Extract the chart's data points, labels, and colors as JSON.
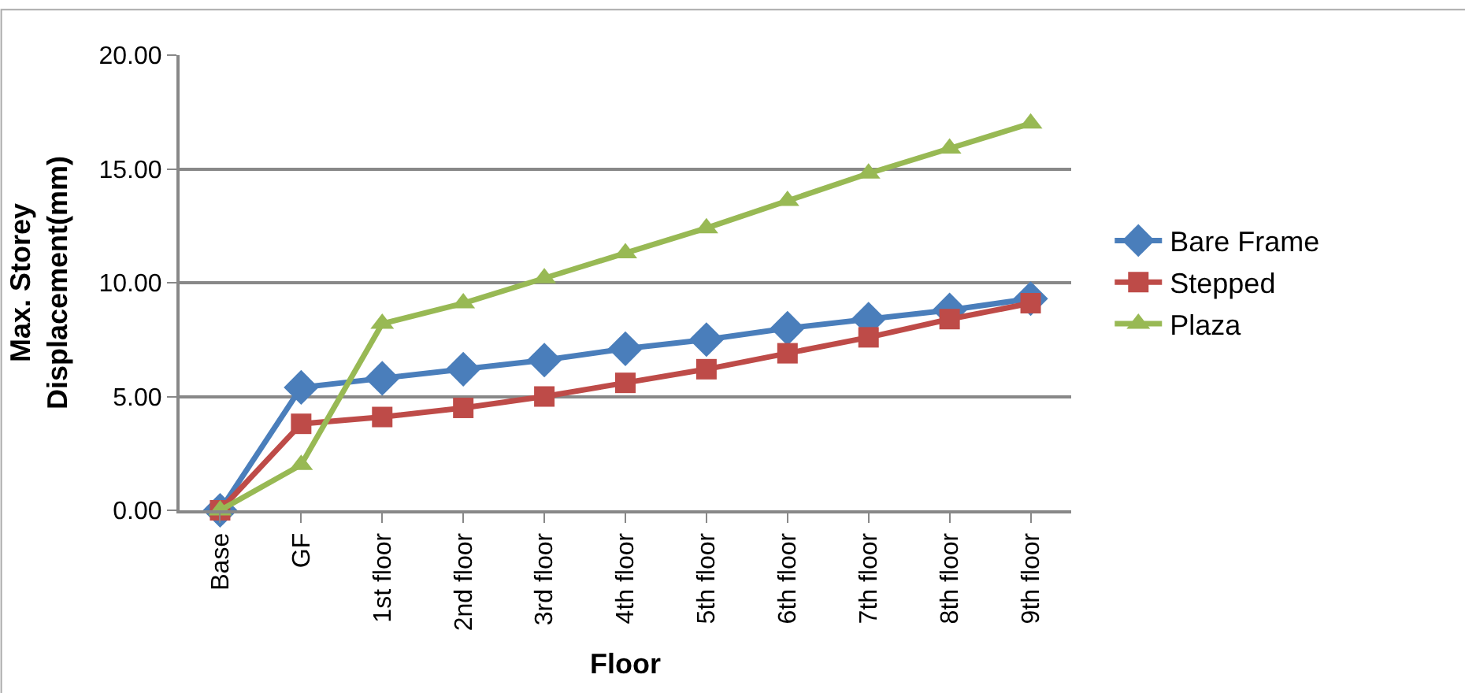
{
  "chart_data": {
    "type": "line",
    "xlabel": "Floor",
    "ylabel": "Max. Storey\nDisplacement(mm)",
    "categories": [
      "Base",
      "GF",
      "1st floor",
      "2nd floor",
      "3rd floor",
      "4th floor",
      "5th floor",
      "6th floor",
      "7th floor",
      "8th floor",
      "9th floor"
    ],
    "series": [
      {
        "name": "Bare Frame",
        "color": "#4a7ebb",
        "marker": "diamond",
        "values": [
          0,
          5.4,
          5.8,
          6.2,
          6.6,
          7.1,
          7.5,
          8.0,
          8.4,
          8.8,
          9.3
        ]
      },
      {
        "name": "Stepped",
        "color": "#be4b48",
        "marker": "square",
        "values": [
          0,
          3.8,
          4.1,
          4.5,
          5.0,
          5.6,
          6.2,
          6.9,
          7.6,
          8.4,
          9.1
        ]
      },
      {
        "name": "Plaza",
        "color": "#98b954",
        "marker": "triangle",
        "values": [
          0,
          2.0,
          8.2,
          9.1,
          10.2,
          11.3,
          12.4,
          13.6,
          14.8,
          15.9,
          17.0
        ]
      }
    ],
    "ylim": [
      0,
      20
    ],
    "yticks": [
      {
        "value": 0,
        "label": "0.00"
      },
      {
        "value": 5,
        "label": "5.00"
      },
      {
        "value": 10,
        "label": "10.00"
      },
      {
        "value": 15,
        "label": "15.00"
      },
      {
        "value": 20,
        "label": "20.00"
      }
    ],
    "grid": "y",
    "legend": "right"
  }
}
